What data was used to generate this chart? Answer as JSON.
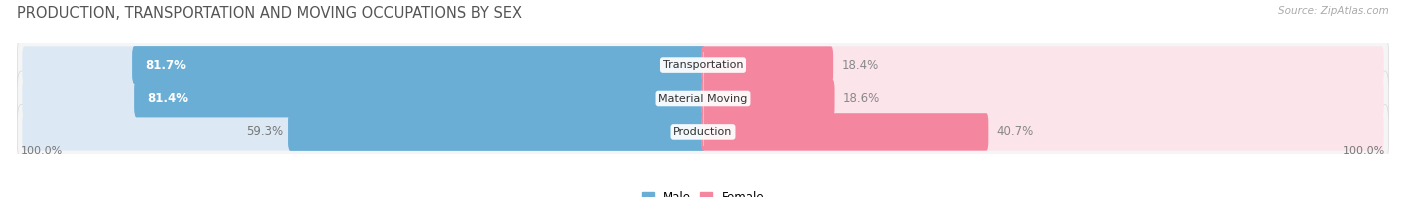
{
  "title": "PRODUCTION, TRANSPORTATION AND MOVING OCCUPATIONS BY SEX",
  "source": "Source: ZipAtlas.com",
  "categories": [
    "Transportation",
    "Material Moving",
    "Production"
  ],
  "male_pct": [
    81.7,
    81.4,
    59.3
  ],
  "female_pct": [
    18.4,
    18.6,
    40.7
  ],
  "male_color_dark": "#6aaed6",
  "male_color_light": "#dce9f5",
  "female_color_dark": "#f4869f",
  "female_color_light": "#fce4eb",
  "row_bg_color": "#f5f5f5",
  "row_border_color": "#d8d8d8",
  "bg_color": "#ffffff",
  "title_fontsize": 10.5,
  "source_fontsize": 7.5,
  "label_fontsize": 8.5,
  "category_fontsize": 8,
  "axis_label_fontsize": 8,
  "bar_height": 0.52,
  "figsize": [
    14.06,
    1.97
  ],
  "dpi": 100
}
